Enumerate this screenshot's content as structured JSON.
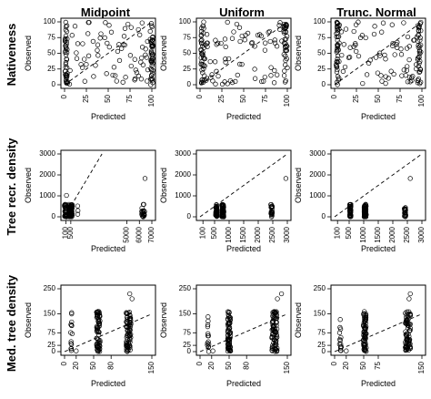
{
  "columns": [
    "Midpoint",
    "Uniform",
    "Trunc. Normal"
  ],
  "rows": [
    "Nativeness",
    "Tree recr. density",
    "Med. tree density"
  ],
  "xlabel": "Predicted",
  "ylabel": "Observed",
  "chart_data": [
    {
      "type": "scatter",
      "row": "Nativeness",
      "column": "Midpoint",
      "xlim": [
        0,
        100
      ],
      "ylim": [
        0,
        100
      ],
      "xticks": [
        0,
        25,
        50,
        75,
        100
      ],
      "yticks": [
        0,
        25,
        50,
        75,
        100
      ],
      "x_tick_labels": [
        "0",
        "25",
        "50",
        "75",
        "100"
      ],
      "y_tick_labels": [
        "0",
        "25",
        "50",
        "75",
        "100"
      ],
      "identity_line": true,
      "points": [],
      "gen": {
        "mode": "uniform",
        "seed": 11,
        "n": 160,
        "cols": [
          [
            2,
            0.25,
            3
          ],
          [
            100,
            0.25,
            3
          ]
        ],
        "yr": [
          0,
          100
        ],
        "xr": [
          0,
          100
        ]
      }
    },
    {
      "type": "scatter",
      "row": "Nativeness",
      "column": "Uniform",
      "xlim": [
        0,
        100
      ],
      "ylim": [
        0,
        100
      ],
      "xticks": [
        0,
        25,
        50,
        75,
        100
      ],
      "yticks": [
        0,
        25,
        50,
        75,
        100
      ],
      "x_tick_labels": [
        "0",
        "25",
        "50",
        "75",
        "100"
      ],
      "y_tick_labels": [
        "0",
        "25",
        "50",
        "75",
        "100"
      ],
      "identity_line": true,
      "points": [],
      "gen": {
        "mode": "uniform",
        "seed": 23,
        "n": 160,
        "cols": [
          [
            3,
            0.22,
            4
          ],
          [
            98,
            0.22,
            4
          ]
        ],
        "yr": [
          0,
          100
        ],
        "xr": [
          0,
          100
        ]
      }
    },
    {
      "type": "scatter",
      "row": "Nativeness",
      "column": "Trunc. Normal",
      "xlim": [
        0,
        100
      ],
      "ylim": [
        0,
        100
      ],
      "xticks": [
        0,
        25,
        50,
        75,
        100
      ],
      "yticks": [
        0,
        25,
        50,
        75,
        100
      ],
      "x_tick_labels": [
        "0",
        "25",
        "50",
        "75",
        "100"
      ],
      "y_tick_labels": [
        "0",
        "25",
        "50",
        "75",
        "100"
      ],
      "identity_line": true,
      "points": [],
      "gen": {
        "mode": "uniform",
        "seed": 37,
        "n": 160,
        "cols": [
          [
            4,
            0.25,
            4
          ],
          [
            97,
            0.22,
            4
          ]
        ],
        "yr": [
          0,
          100
        ],
        "xr": [
          0,
          100
        ]
      }
    },
    {
      "type": "scatter",
      "row": "Tree recr. density",
      "column": "Midpoint",
      "xlim": [
        0,
        7000
      ],
      "ylim": [
        0,
        3000
      ],
      "xticks": [
        100,
        500,
        5000,
        6000,
        7000
      ],
      "yticks": [
        0,
        1000,
        2000,
        3000
      ],
      "x_tick_labels": [
        "100",
        "500",
        "5000",
        "6000",
        "7000"
      ],
      "y_tick_labels": [
        "0",
        "1000",
        "2000",
        "3000"
      ],
      "identity_line": true,
      "points": [],
      "gen": {
        "mode": "cols",
        "seed": 5,
        "cols": [
          [
            100,
            45,
            250
          ],
          [
            500,
            70,
            280
          ],
          [
            1050,
            3,
            60
          ],
          [
            6300,
            22,
            250
          ]
        ],
        "xr": [
          0,
          7000
        ],
        "ymax": 600,
        "outliers": [
          [
            6450,
            1830
          ],
          [
            150,
            1020
          ]
        ]
      }
    },
    {
      "type": "scatter",
      "row": "Tree recr. density",
      "column": "Uniform",
      "xlim": [
        0,
        3000
      ],
      "ylim": [
        0,
        3000
      ],
      "xticks": [
        100,
        500,
        1000,
        1500,
        2000,
        2500,
        3000
      ],
      "yticks": [
        0,
        1000,
        2000,
        3000
      ],
      "x_tick_labels": [
        "100",
        "500",
        "1000",
        "1500",
        "2000",
        "2500",
        "3000"
      ],
      "y_tick_labels": [
        "0",
        "1000",
        "2000",
        "3000"
      ],
      "identity_line": true,
      "points": [],
      "gen": {
        "mode": "cols",
        "seed": 7,
        "cols": [
          [
            560,
            45,
            45
          ],
          [
            780,
            70,
            70
          ],
          [
            2460,
            22,
            55
          ]
        ],
        "xr": [
          0,
          3000
        ],
        "ymax": 600,
        "outliers": [
          [
            2950,
            1830
          ]
        ]
      }
    },
    {
      "type": "scatter",
      "row": "Tree recr. density",
      "column": "Trunc. Normal",
      "xlim": [
        0,
        3000
      ],
      "ylim": [
        0,
        3000
      ],
      "xticks": [
        100,
        500,
        1000,
        1500,
        2000,
        2500,
        3000
      ],
      "yticks": [
        0,
        1000,
        2000,
        3000
      ],
      "x_tick_labels": [
        "100",
        "500",
        "1000",
        "1500",
        "2000",
        "2500",
        "3000"
      ],
      "y_tick_labels": [
        "0",
        "1000",
        "2000",
        "3000"
      ],
      "identity_line": true,
      "points": [],
      "gen": {
        "mode": "cols",
        "seed": 9,
        "cols": [
          [
            540,
            45,
            45
          ],
          [
            1050,
            70,
            70
          ],
          [
            2420,
            22,
            55
          ]
        ],
        "xr": [
          0,
          3000
        ],
        "ymax": 600,
        "outliers": [
          [
            2600,
            1830
          ]
        ]
      }
    },
    {
      "type": "scatter",
      "row": "Med. tree density",
      "column": "Midpoint",
      "xlim": [
        0,
        150
      ],
      "ylim": [
        0,
        250
      ],
      "xticks": [
        0,
        20,
        50,
        80,
        150
      ],
      "yticks": [
        0,
        25,
        75,
        150,
        250
      ],
      "x_tick_labels": [
        "0",
        "20",
        "50",
        "80",
        "150"
      ],
      "y_tick_labels": [
        "0",
        "25",
        "75",
        "150",
        "250"
      ],
      "identity_line": true,
      "points": [],
      "gen": {
        "mode": "cols",
        "seed": 13,
        "cols": [
          [
            12,
            14,
            3
          ],
          [
            58,
            70,
            6
          ],
          [
            110,
            75,
            8
          ]
        ],
        "xr": [
          0,
          150
        ],
        "ymax": 160,
        "outliers": [
          [
            112,
            230
          ],
          [
            116,
            210
          ],
          [
            20,
            3
          ]
        ]
      }
    },
    {
      "type": "scatter",
      "row": "Med. tree density",
      "column": "Uniform",
      "xlim": [
        0,
        150
      ],
      "ylim": [
        0,
        250
      ],
      "xticks": [
        0,
        20,
        50,
        80,
        150
      ],
      "yticks": [
        0,
        25,
        75,
        150,
        250
      ],
      "x_tick_labels": [
        "0",
        "20",
        "50",
        "80",
        "150"
      ],
      "y_tick_labels": [
        "0",
        "25",
        "75",
        "150",
        "250"
      ],
      "identity_line": true,
      "points": [],
      "gen": {
        "mode": "cols",
        "seed": 17,
        "cols": [
          [
            14,
            14,
            3
          ],
          [
            50,
            70,
            5
          ],
          [
            128,
            80,
            9
          ]
        ],
        "xr": [
          0,
          150
        ],
        "ymax": 160,
        "outliers": [
          [
            140,
            230
          ],
          [
            133,
            210
          ],
          [
            22,
            3
          ]
        ]
      }
    },
    {
      "type": "scatter",
      "row": "Med. tree density",
      "column": "Trunc. Normal",
      "xlim": [
        0,
        150
      ],
      "ylim": [
        0,
        250
      ],
      "xticks": [
        0,
        20,
        50,
        75,
        150
      ],
      "yticks": [
        0,
        25,
        75,
        150,
        250
      ],
      "x_tick_labels": [
        "0",
        "20",
        "50",
        "75",
        "150"
      ],
      "y_tick_labels": [
        "0",
        "25",
        "75",
        "150",
        "250"
      ],
      "identity_line": true,
      "points": [],
      "gen": {
        "mode": "cols",
        "seed": 19,
        "cols": [
          [
            10,
            14,
            3
          ],
          [
            52,
            70,
            5
          ],
          [
            126,
            80,
            9
          ]
        ],
        "xr": [
          0,
          150
        ],
        "ymax": 160,
        "outliers": [
          [
            130,
            230
          ],
          [
            128,
            210
          ],
          [
            20,
            3
          ]
        ]
      }
    }
  ]
}
